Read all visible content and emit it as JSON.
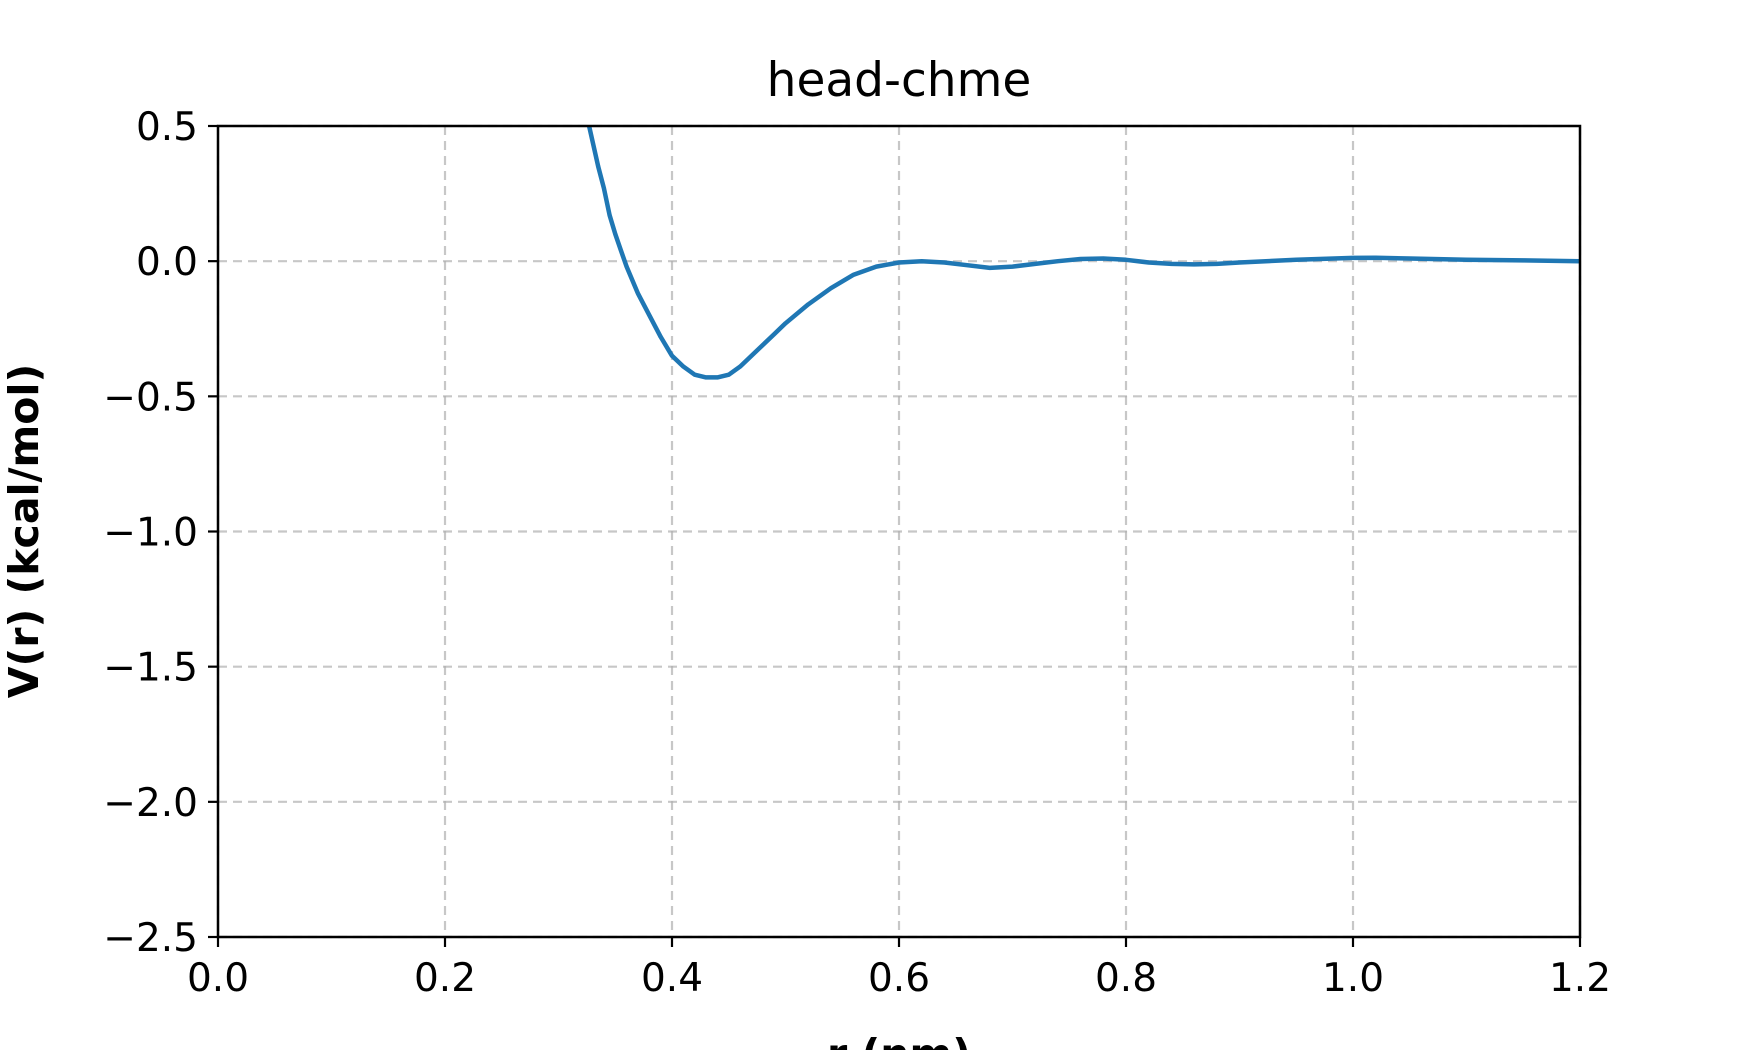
{
  "chart_data": {
    "type": "line",
    "title": "head-chme",
    "xlabel": "r (nm)",
    "ylabel": "V(r) (kcal/mol)",
    "xlim": [
      0.0,
      1.2
    ],
    "ylim": [
      -2.5,
      0.5
    ],
    "x_ticks": [
      "0.0",
      "0.2",
      "0.4",
      "0.6",
      "0.8",
      "1.0",
      "1.2"
    ],
    "y_ticks": [
      "0.5",
      "0.0",
      "−0.5",
      "−1.0",
      "−1.5",
      "−2.0",
      "−2.5"
    ],
    "grid": true,
    "legend": "none",
    "series_color": "#1f77b4",
    "series": [
      {
        "x": [
          0.327,
          0.335,
          0.34,
          0.345,
          0.35,
          0.355,
          0.36,
          0.37,
          0.38,
          0.39,
          0.4,
          0.41,
          0.42,
          0.43,
          0.435,
          0.44,
          0.45,
          0.46,
          0.47,
          0.48,
          0.49,
          0.5,
          0.52,
          0.54,
          0.56,
          0.58,
          0.6,
          0.62,
          0.64,
          0.66,
          0.68,
          0.7,
          0.72,
          0.74,
          0.76,
          0.78,
          0.8,
          0.82,
          0.84,
          0.86,
          0.88,
          0.9,
          0.95,
          1.0,
          1.02,
          1.05,
          1.1,
          1.15,
          1.2
        ],
        "y": [
          0.5,
          0.35,
          0.27,
          0.17,
          0.1,
          0.04,
          -0.02,
          -0.12,
          -0.2,
          -0.28,
          -0.35,
          -0.39,
          -0.42,
          -0.43,
          -0.43,
          -0.43,
          -0.42,
          -0.39,
          -0.35,
          -0.31,
          -0.27,
          -0.23,
          -0.16,
          -0.1,
          -0.05,
          -0.02,
          -0.005,
          0.0,
          -0.005,
          -0.015,
          -0.025,
          -0.02,
          -0.01,
          0.0,
          0.008,
          0.01,
          0.005,
          -0.005,
          -0.01,
          -0.012,
          -0.01,
          -0.005,
          0.005,
          0.012,
          0.013,
          0.01,
          0.005,
          0.003,
          0.0
        ]
      }
    ]
  }
}
